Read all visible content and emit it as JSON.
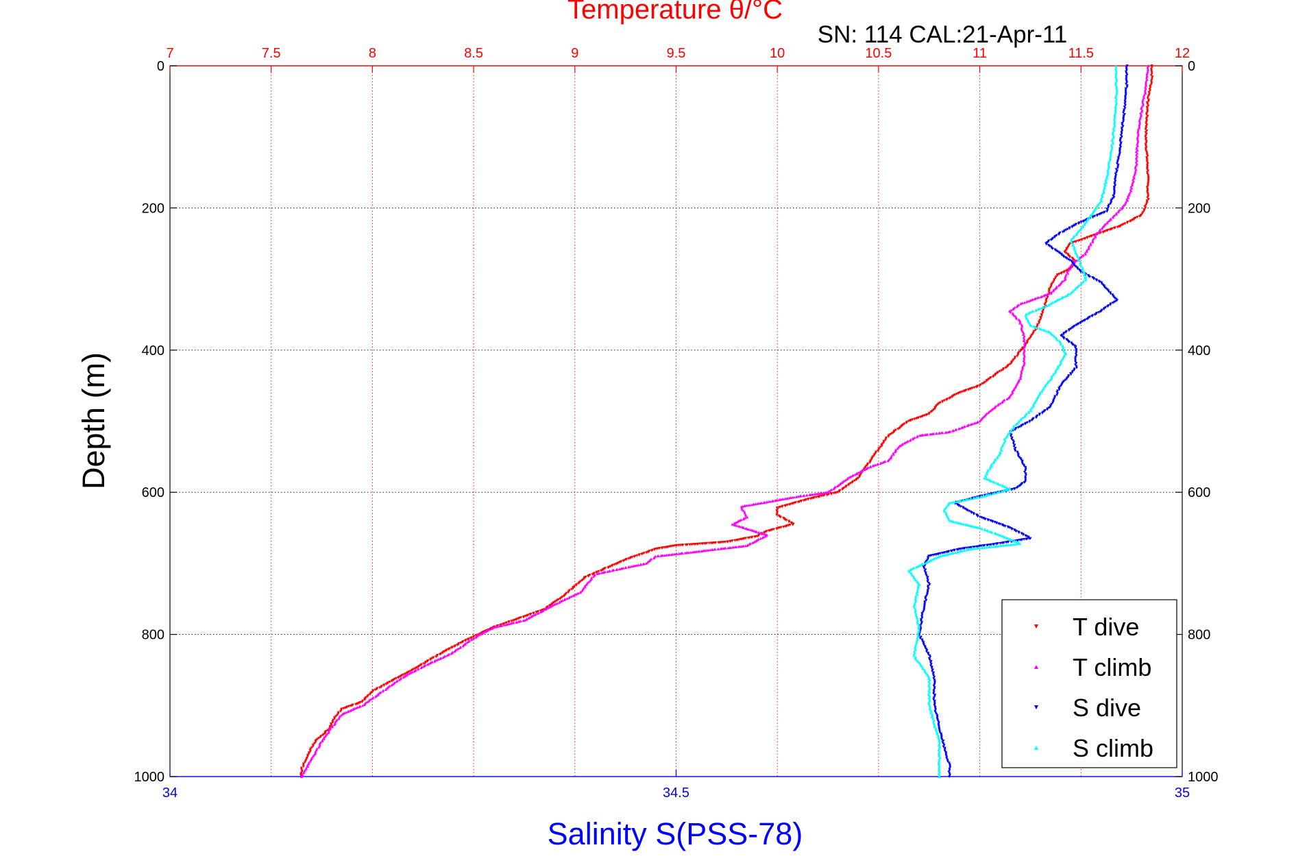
{
  "chart_data": {
    "type": "scatter",
    "top_axis_title": "Temperature θ/°C",
    "subtitle": "SN: 114  CAL:21-Apr-11",
    "ylabel": "Depth (m)",
    "bottom_axis_title": "Salinity S(PSS-78)",
    "temperature_axis": {
      "range": [
        7,
        12
      ],
      "ticks": [
        "7",
        "7.5",
        "8",
        "8.5",
        "9",
        "9.5",
        "10",
        "10.5",
        "11",
        "11.5",
        "12"
      ],
      "color": "#ff0000"
    },
    "salinity_axis": {
      "range": [
        34,
        35
      ],
      "ticks": [
        "34",
        "34.5",
        "35"
      ],
      "color": "#0000ff"
    },
    "depth_axis": {
      "range": [
        0,
        1000
      ],
      "ticks": [
        "0",
        "200",
        "400",
        "600",
        "800",
        "1000"
      ],
      "reversed": true
    },
    "grid": true,
    "legend_position": "bottom-right",
    "series": [
      {
        "name": "T dive",
        "axis": "temperature",
        "color": "#ff0000",
        "points": [
          [
            11.85,
            0
          ],
          [
            11.85,
            20
          ],
          [
            11.83,
            50
          ],
          [
            11.82,
            100
          ],
          [
            11.83,
            150
          ],
          [
            11.83,
            190
          ],
          [
            11.8,
            210
          ],
          [
            11.7,
            225
          ],
          [
            11.55,
            240
          ],
          [
            11.45,
            250
          ],
          [
            11.42,
            262
          ],
          [
            11.47,
            275
          ],
          [
            11.45,
            285
          ],
          [
            11.38,
            295
          ],
          [
            11.35,
            310
          ],
          [
            11.32,
            340
          ],
          [
            11.28,
            370
          ],
          [
            11.22,
            395
          ],
          [
            11.15,
            420
          ],
          [
            11.05,
            440
          ],
          [
            11.0,
            450
          ],
          [
            10.9,
            460
          ],
          [
            10.8,
            475
          ],
          [
            10.75,
            490
          ],
          [
            10.65,
            500
          ],
          [
            10.55,
            520
          ],
          [
            10.5,
            540
          ],
          [
            10.45,
            560
          ],
          [
            10.4,
            580
          ],
          [
            10.3,
            600
          ],
          [
            10.15,
            610
          ],
          [
            10.05,
            618
          ],
          [
            10.0,
            622
          ],
          [
            10.0,
            632
          ],
          [
            10.08,
            645
          ],
          [
            9.95,
            655
          ],
          [
            9.9,
            662
          ],
          [
            9.75,
            670
          ],
          [
            9.5,
            675
          ],
          [
            9.4,
            680
          ],
          [
            9.25,
            695
          ],
          [
            9.05,
            720
          ],
          [
            8.95,
            745
          ],
          [
            8.85,
            765
          ],
          [
            8.7,
            780
          ],
          [
            8.6,
            790
          ],
          [
            8.45,
            810
          ],
          [
            8.35,
            825
          ],
          [
            8.2,
            850
          ],
          [
            8.1,
            865
          ],
          [
            8.0,
            880
          ],
          [
            7.95,
            895
          ],
          [
            7.85,
            905
          ],
          [
            7.82,
            915
          ],
          [
            7.78,
            935
          ],
          [
            7.72,
            950
          ],
          [
            7.68,
            970
          ],
          [
            7.65,
            990
          ],
          [
            7.65,
            1000
          ]
        ]
      },
      {
        "name": "T climb",
        "axis": "temperature",
        "color": "#ff00ff",
        "points": [
          [
            11.83,
            0
          ],
          [
            11.82,
            30
          ],
          [
            11.8,
            60
          ],
          [
            11.78,
            100
          ],
          [
            11.77,
            150
          ],
          [
            11.74,
            180
          ],
          [
            11.72,
            195
          ],
          [
            11.65,
            215
          ],
          [
            11.58,
            235
          ],
          [
            11.55,
            250
          ],
          [
            11.52,
            265
          ],
          [
            11.45,
            280
          ],
          [
            11.42,
            300
          ],
          [
            11.35,
            320
          ],
          [
            11.2,
            335
          ],
          [
            11.15,
            345
          ],
          [
            11.2,
            360
          ],
          [
            11.22,
            380
          ],
          [
            11.22,
            400
          ],
          [
            11.22,
            415
          ],
          [
            11.2,
            440
          ],
          [
            11.15,
            465
          ],
          [
            11.05,
            485
          ],
          [
            11.0,
            500
          ],
          [
            10.85,
            515
          ],
          [
            10.7,
            520
          ],
          [
            10.6,
            535
          ],
          [
            10.55,
            555
          ],
          [
            10.45,
            565
          ],
          [
            10.35,
            580
          ],
          [
            10.25,
            600
          ],
          [
            10.12,
            605
          ],
          [
            9.98,
            612
          ],
          [
            9.82,
            620
          ],
          [
            9.85,
            635
          ],
          [
            9.78,
            645
          ],
          [
            9.95,
            660
          ],
          [
            9.85,
            675
          ],
          [
            9.55,
            685
          ],
          [
            9.4,
            690
          ],
          [
            9.35,
            700
          ],
          [
            9.1,
            715
          ],
          [
            9.03,
            740
          ],
          [
            8.92,
            755
          ],
          [
            8.75,
            780
          ],
          [
            8.6,
            790
          ],
          [
            8.5,
            805
          ],
          [
            8.4,
            825
          ],
          [
            8.25,
            845
          ],
          [
            8.15,
            860
          ],
          [
            8.05,
            880
          ],
          [
            7.95,
            900
          ],
          [
            7.85,
            912
          ],
          [
            7.8,
            930
          ],
          [
            7.75,
            950
          ],
          [
            7.7,
            975
          ],
          [
            7.65,
            1000
          ]
        ]
      },
      {
        "name": "S dive",
        "axis": "salinity",
        "color": "#0000ff",
        "points": [
          [
            34.945,
            0
          ],
          [
            34.945,
            30
          ],
          [
            34.943,
            60
          ],
          [
            34.94,
            100
          ],
          [
            34.935,
            150
          ],
          [
            34.932,
            185
          ],
          [
            34.925,
            205
          ],
          [
            34.9,
            220
          ],
          [
            34.88,
            235
          ],
          [
            34.865,
            250
          ],
          [
            34.875,
            260
          ],
          [
            34.89,
            275
          ],
          [
            34.9,
            290
          ],
          [
            34.92,
            305
          ],
          [
            34.935,
            330
          ],
          [
            34.92,
            345
          ],
          [
            34.895,
            365
          ],
          [
            34.88,
            380
          ],
          [
            34.895,
            395
          ],
          [
            34.895,
            425
          ],
          [
            34.88,
            450
          ],
          [
            34.87,
            480
          ],
          [
            34.85,
            500
          ],
          [
            34.83,
            515
          ],
          [
            34.835,
            540
          ],
          [
            34.845,
            565
          ],
          [
            34.845,
            585
          ],
          [
            34.835,
            595
          ],
          [
            34.8,
            606
          ],
          [
            34.775,
            615
          ],
          [
            34.8,
            635
          ],
          [
            34.83,
            650
          ],
          [
            34.85,
            665
          ],
          [
            34.82,
            672
          ],
          [
            34.78,
            680
          ],
          [
            34.75,
            690
          ],
          [
            34.745,
            705
          ],
          [
            34.75,
            730
          ],
          [
            34.745,
            760
          ],
          [
            34.74,
            800
          ],
          [
            34.75,
            830
          ],
          [
            34.755,
            860
          ],
          [
            34.755,
            900
          ],
          [
            34.76,
            930
          ],
          [
            34.765,
            960
          ],
          [
            34.77,
            985
          ],
          [
            34.77,
            1000
          ]
        ]
      },
      {
        "name": "S climb",
        "axis": "salinity",
        "color": "#00ffff",
        "points": [
          [
            34.935,
            0
          ],
          [
            34.935,
            40
          ],
          [
            34.933,
            80
          ],
          [
            34.93,
            120
          ],
          [
            34.925,
            160
          ],
          [
            34.92,
            190
          ],
          [
            34.91,
            210
          ],
          [
            34.9,
            230
          ],
          [
            34.89,
            245
          ],
          [
            34.895,
            262
          ],
          [
            34.9,
            280
          ],
          [
            34.905,
            300
          ],
          [
            34.89,
            320
          ],
          [
            34.87,
            335
          ],
          [
            34.845,
            350
          ],
          [
            34.85,
            365
          ],
          [
            34.87,
            375
          ],
          [
            34.88,
            390
          ],
          [
            34.885,
            405
          ],
          [
            34.875,
            430
          ],
          [
            34.86,
            460
          ],
          [
            34.85,
            485
          ],
          [
            34.835,
            505
          ],
          [
            34.825,
            525
          ],
          [
            34.82,
            545
          ],
          [
            34.81,
            565
          ],
          [
            34.805,
            580
          ],
          [
            34.83,
            595
          ],
          [
            34.805,
            605
          ],
          [
            34.77,
            615
          ],
          [
            34.765,
            625
          ],
          [
            34.77,
            640
          ],
          [
            34.8,
            650
          ],
          [
            34.82,
            660
          ],
          [
            34.84,
            672
          ],
          [
            34.79,
            680
          ],
          [
            34.76,
            690
          ],
          [
            34.73,
            710
          ],
          [
            34.74,
            730
          ],
          [
            34.735,
            760
          ],
          [
            34.74,
            790
          ],
          [
            34.735,
            830
          ],
          [
            34.75,
            860
          ],
          [
            34.75,
            900
          ],
          [
            34.76,
            950
          ],
          [
            34.76,
            1000
          ]
        ]
      }
    ]
  }
}
